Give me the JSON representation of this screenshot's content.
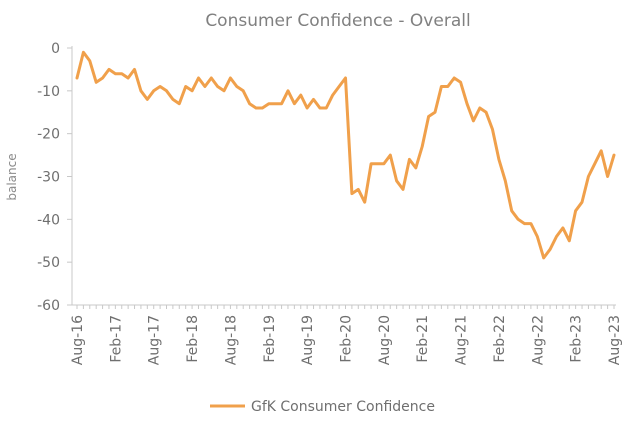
{
  "chart_data": {
    "type": "line",
    "title": "Consumer Confidence - Overall",
    "ylabel": "balance",
    "xlabel": "",
    "ylim": [
      -60,
      0
    ],
    "yticks": [
      0,
      -10,
      -20,
      -30,
      -40,
      -50,
      -60
    ],
    "xticks": [
      "Aug-16",
      "Feb-17",
      "Aug-17",
      "Feb-18",
      "Aug-18",
      "Feb-19",
      "Aug-19",
      "Feb-20",
      "Aug-20",
      "Feb-21",
      "Aug-21",
      "Feb-22",
      "Aug-22",
      "Feb-23",
      "Aug-23"
    ],
    "grid": false,
    "legend": "bottom",
    "colors": {
      "series": "#f0a04b",
      "axis": "#c8c8c8",
      "text": "#7a7a7a"
    },
    "x": [
      "Aug-16",
      "Sep-16",
      "Oct-16",
      "Nov-16",
      "Dec-16",
      "Jan-17",
      "Feb-17",
      "Mar-17",
      "Apr-17",
      "May-17",
      "Jun-17",
      "Jul-17",
      "Aug-17",
      "Sep-17",
      "Oct-17",
      "Nov-17",
      "Dec-17",
      "Jan-18",
      "Feb-18",
      "Mar-18",
      "Apr-18",
      "May-18",
      "Jun-18",
      "Jul-18",
      "Aug-18",
      "Sep-18",
      "Oct-18",
      "Nov-18",
      "Dec-18",
      "Jan-19",
      "Feb-19",
      "Mar-19",
      "Apr-19",
      "May-19",
      "Jun-19",
      "Jul-19",
      "Aug-19",
      "Sep-19",
      "Oct-19",
      "Nov-19",
      "Dec-19",
      "Jan-20",
      "Feb-20",
      "Mar-20",
      "Apr-20",
      "May-20",
      "Jun-20",
      "Jul-20",
      "Aug-20",
      "Sep-20",
      "Oct-20",
      "Nov-20",
      "Dec-20",
      "Jan-21",
      "Feb-21",
      "Mar-21",
      "Apr-21",
      "May-21",
      "Jun-21",
      "Jul-21",
      "Aug-21",
      "Sep-21",
      "Oct-21",
      "Nov-21",
      "Dec-21",
      "Jan-22",
      "Feb-22",
      "Mar-22",
      "Apr-22",
      "May-22",
      "Jun-22",
      "Jul-22",
      "Aug-22",
      "Sep-22",
      "Oct-22",
      "Nov-22",
      "Dec-22",
      "Jan-23",
      "Feb-23",
      "Mar-23",
      "Apr-23",
      "May-23",
      "Jun-23",
      "Jul-23",
      "Aug-23"
    ],
    "series": [
      {
        "name": "GfK Consumer Confidence",
        "values": [
          -7,
          -1,
          -3,
          -8,
          -7,
          -5,
          -6,
          -6,
          -7,
          -5,
          -10,
          -12,
          -10,
          -9,
          -10,
          -12,
          -13,
          -9,
          -10,
          -7,
          -9,
          -7,
          -9,
          -10,
          -7,
          -9,
          -10,
          -13,
          -14,
          -14,
          -13,
          -13,
          -13,
          -10,
          -13,
          -11,
          -14,
          -12,
          -14,
          -14,
          -11,
          -9,
          -7,
          -34,
          -33,
          -36,
          -27,
          -27,
          -27,
          -25,
          -31,
          -33,
          -26,
          -28,
          -23,
          -16,
          -15,
          -9,
          -9,
          -7,
          -8,
          -13,
          -17,
          -14,
          -15,
          -19,
          -26,
          -31,
          -38,
          -40,
          -41,
          -41,
          -44,
          -49,
          -47,
          -44,
          -42,
          -45,
          -38,
          -36,
          -30,
          -27,
          -24,
          -30,
          -25
        ]
      }
    ]
  }
}
